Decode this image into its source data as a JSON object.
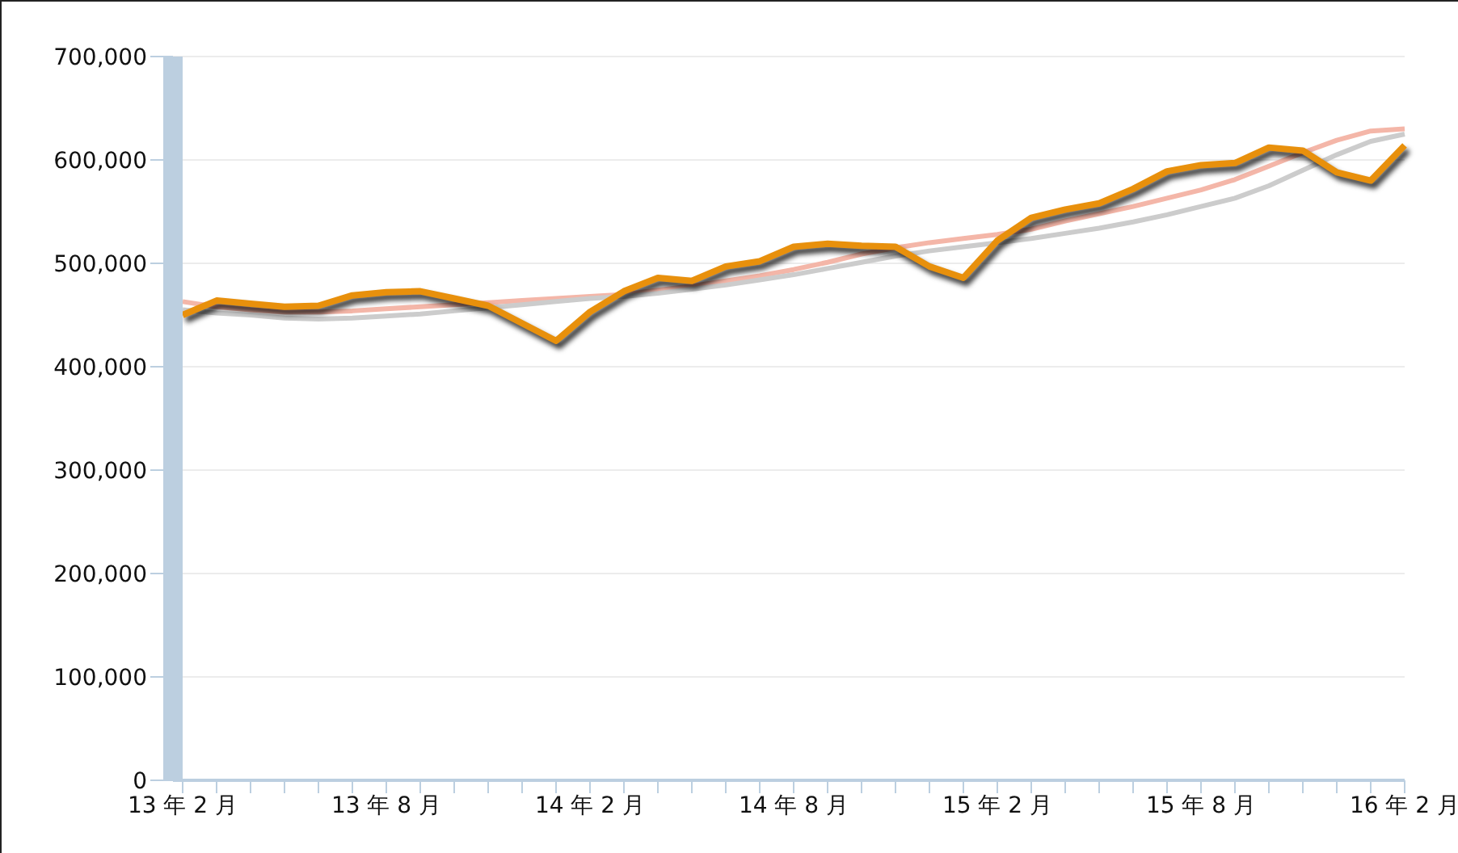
{
  "chart_data": {
    "type": "line",
    "categories": [
      "13 年 2 月",
      null,
      null,
      null,
      null,
      null,
      "13 年 8 月",
      null,
      null,
      null,
      null,
      null,
      "14 年 2 月",
      null,
      null,
      null,
      null,
      null,
      "14 年 8 月",
      null,
      null,
      null,
      null,
      null,
      "15 年 2 月",
      null,
      null,
      null,
      null,
      null,
      "15 年 8 月",
      null,
      null,
      null,
      null,
      null,
      "16 年 2 月"
    ],
    "series": [
      {
        "color": "#f4b6a8",
        "values": [
          463000,
          458000,
          455000,
          453000,
          453000,
          454000,
          456000,
          458000,
          460000,
          462000,
          464000,
          466000,
          468000,
          470000,
          474000,
          478000,
          483000,
          488000,
          494000,
          501000,
          509000,
          515000,
          520000,
          524000,
          528000,
          533000,
          541000,
          548000,
          555000,
          563000,
          571000,
          581000,
          594000,
          607000,
          619000,
          628000,
          630000
        ]
      },
      {
        "color": "#cccccc",
        "values": [
          455000,
          452000,
          450000,
          447000,
          446000,
          447000,
          449000,
          451000,
          454000,
          457000,
          460000,
          463000,
          466000,
          468000,
          471000,
          475000,
          479000,
          484000,
          489000,
          495000,
          501000,
          507000,
          512000,
          516000,
          520000,
          524000,
          529000,
          534000,
          540000,
          547000,
          555000,
          563000,
          575000,
          590000,
          605000,
          618000,
          625000
        ]
      },
      {
        "color": "#e8900c",
        "values": [
          450000,
          464000,
          461000,
          458000,
          459000,
          469000,
          472000,
          473000,
          466000,
          459000,
          442000,
          425000,
          453000,
          473000,
          486000,
          483000,
          497000,
          502000,
          516000,
          519000,
          517000,
          516000,
          497000,
          486000,
          522000,
          544000,
          552000,
          558000,
          572000,
          589000,
          595000,
          597000,
          612000,
          609000,
          588000,
          580000,
          614000
        ]
      }
    ],
    "ylim": [
      0,
      700000
    ],
    "yticks": [
      0,
      {
        "value": 100000,
        "label": "100,000"
      },
      {
        "value": 200000,
        "label": "200,000"
      },
      {
        "value": 300000,
        "label": "300,000"
      },
      {
        "value": 400000,
        "label": "400,000"
      },
      {
        "value": 500000,
        "label": "500,000"
      },
      {
        "value": 600000,
        "label": "600,000"
      },
      {
        "value": 700000,
        "label": "700,000"
      }
    ],
    "grid": "y",
    "marker": "none",
    "line_style": "solid"
  }
}
